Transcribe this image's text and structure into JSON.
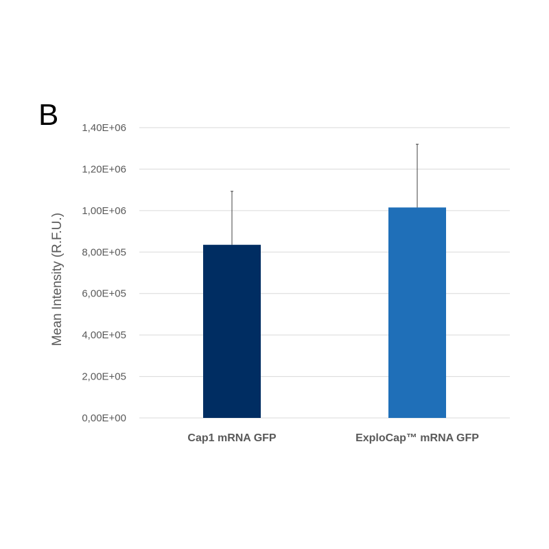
{
  "panel_label": "B",
  "chart_data": {
    "type": "bar",
    "title": "",
    "xlabel": "",
    "ylabel": "Mean Intensity (R.F.U.)",
    "ylim": [
      0,
      1400000
    ],
    "yticks": [
      0,
      200000,
      400000,
      600000,
      800000,
      1000000,
      1200000,
      1400000
    ],
    "ytick_labels": [
      "0,00E+00",
      "2,00E+05",
      "4,00E+05",
      "6,00E+05",
      "8,00E+05",
      "1,00E+06",
      "1,20E+06",
      "1,40E+06"
    ],
    "grid": true,
    "categories": [
      "Cap1 mRNA GFP",
      "ExploCap™ mRNA GFP"
    ],
    "values": [
      835000,
      1015000
    ],
    "error_plus": [
      258000,
      305000
    ],
    "colors": [
      "#002D62",
      "#1F6FB8"
    ]
  }
}
